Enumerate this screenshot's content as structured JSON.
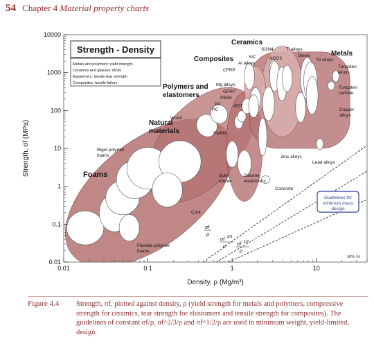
{
  "header": {
    "page_number": "54",
    "chapter": "Chapter 4",
    "title": "Material property charts"
  },
  "caption": {
    "label": "Figure 4.4",
    "text": "Strength, σf, plotted against density, ρ (yield strength for metals and polymers, compressive strength for ceramics, tear strength for elastomers and tensile strength for composites). The guidelines of constant σf/ρ, σf^2/3/ρ and σf^1/2/ρ are used in minimum weight, yield-limited, design."
  },
  "chart_data": {
    "type": "scatter",
    "title": "Strength - Density",
    "xlabel": "Density, ρ (Mg/m³)",
    "ylabel": "Strength, σf (MPa)",
    "x_scale": "log",
    "y_scale": "log",
    "xlim": [
      0.01,
      40
    ],
    "ylim": [
      0.01,
      10000
    ],
    "x_ticks": [
      "0.01",
      "0.1",
      "1",
      "10"
    ],
    "y_ticks": [
      "0.01",
      "0.1",
      "1",
      "10",
      "100",
      "1000",
      "10000"
    ],
    "legend_box": [
      "Metals and polymers: yield strength",
      "Ceramics and glasses: MOR",
      "Elastomers: tensile tear strength",
      "Composites: tensile failure"
    ],
    "families": [
      {
        "name": "Foams",
        "x_range": [
          0.012,
          0.9
        ],
        "y_range": [
          0.015,
          30
        ]
      },
      {
        "name": "Natural materials",
        "x_range": [
          0.12,
          1.5
        ],
        "y_range": [
          0.5,
          300
        ]
      },
      {
        "name": "Polymers and elastomers",
        "x_range": [
          0.85,
          2.3
        ],
        "y_range": [
          0.4,
          300
        ]
      },
      {
        "name": "Composites",
        "x_range": [
          1.4,
          2.5
        ],
        "y_range": [
          80,
          1500
        ]
      },
      {
        "name": "Ceramics",
        "x_range": [
          2.2,
          7
        ],
        "y_range": [
          20,
          5000
        ]
      },
      {
        "name": "Metals",
        "x_range": [
          1.6,
          25
        ],
        "y_range": [
          10,
          3500
        ]
      }
    ],
    "annotations": [
      "Rigid polymer foams",
      "Flexible polymer foams",
      "Cork",
      "Wood",
      "PMMA",
      "PA",
      "PC",
      "PET",
      "PEEK",
      "GFRP",
      "CFRP",
      "Mg alloys",
      "Al alloys",
      "SiC",
      "Si3N4",
      "Al2O3",
      "Ti alloys",
      "Steels",
      "Ni alloys",
      "Tungsten alloys",
      "Tungsten carbide",
      "Copper alloys",
      "Zinc alloys",
      "Lead alloys",
      "Butyl rubber",
      "Silicone elastomers",
      "Concrete"
    ],
    "guidelines": {
      "box_label": "Guidelines for minimum mass design",
      "labels": [
        "σf/ρ",
        "σf^2/3/ρ",
        "σf^1/2/ρ"
      ]
    },
    "credit": "MFA, 04"
  },
  "colors": {
    "bubble_fill": "#b57272",
    "bubble_fill_light": "#d9adad",
    "header_red": "#9b2a2a",
    "guide_box": "#2a3f8f"
  }
}
